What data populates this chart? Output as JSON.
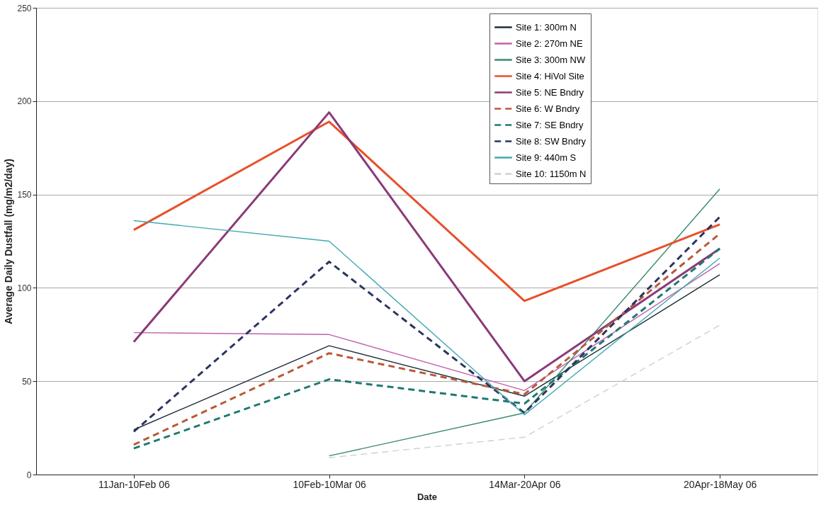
{
  "chart_data": {
    "type": "line",
    "xlabel": "Date",
    "ylabel": "Average Daily Dustfall (mg/m2/day)",
    "categories": [
      "11Jan-10Feb 06",
      "10Feb-10Mar 06",
      "14Mar-20Apr 06",
      "20Apr-18May 06"
    ],
    "ylim": [
      0,
      250
    ],
    "yticks": [
      0,
      50,
      100,
      150,
      200,
      250
    ],
    "grid": "y",
    "legend": "top right",
    "marker": "none",
    "series": [
      {
        "name": "Site 1: 300m N",
        "color": "#1f2d3a",
        "line_style": "solid",
        "values": [
          24,
          69,
          42,
          107
        ]
      },
      {
        "name": "Site 2: 270m NE",
        "color": "#c060b0",
        "line_style": "solid",
        "values": [
          76,
          75,
          45,
          113
        ]
      },
      {
        "name": "Site 3: 300m NW",
        "color": "#3a8a6a",
        "line_style": "solid",
        "values": [
          null,
          10,
          33,
          153
        ]
      },
      {
        "name": "Site 4: HiVol Site",
        "color": "#e8502a",
        "line_style": "solid",
        "values": [
          131,
          189,
          93,
          134
        ]
      },
      {
        "name": "Site 5: NE Bndry",
        "color": "#8a3a78",
        "line_style": "solid",
        "values": [
          71,
          194,
          50,
          121
        ]
      },
      {
        "name": "Site 6: W Bndry",
        "color": "#b85a38",
        "line_style": "dashed",
        "values": [
          16,
          65,
          43,
          129
        ]
      },
      {
        "name": "Site 7: SE Bndry",
        "color": "#1e7a70",
        "line_style": "dashed",
        "values": [
          14,
          51,
          38,
          121
        ]
      },
      {
        "name": "Site 8: SW Bndry",
        "color": "#2a3560",
        "line_style": "dashed",
        "values": [
          23,
          114,
          33,
          138
        ]
      },
      {
        "name": "Site 9: 440m S",
        "color": "#40a8b0",
        "line_style": "solid",
        "values": [
          136,
          125,
          32,
          116
        ]
      },
      {
        "name": "Site 10: 1150m N",
        "color": "#d0d0d0",
        "line_style": "dashed",
        "values": [
          null,
          9,
          20,
          80
        ]
      }
    ]
  }
}
